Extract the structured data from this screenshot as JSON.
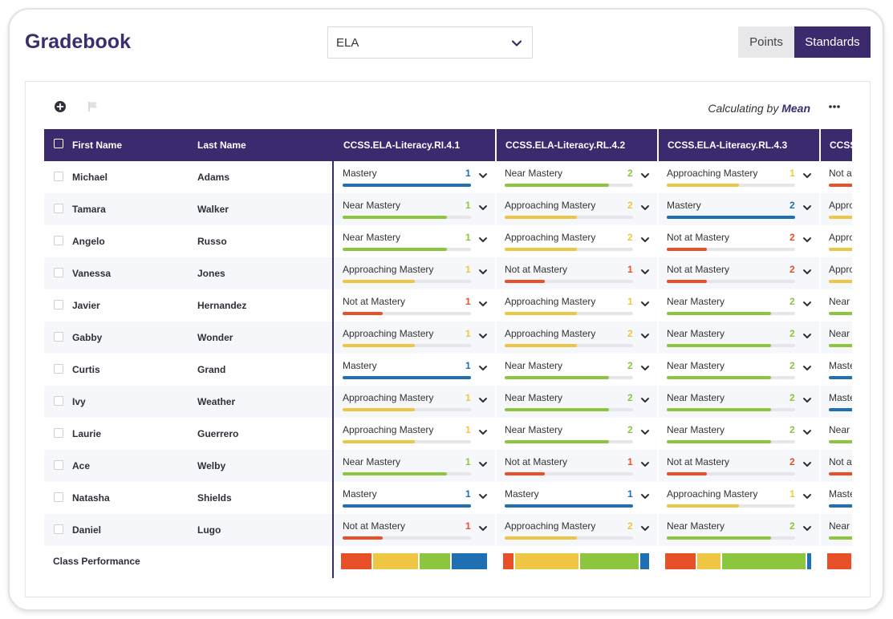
{
  "header": {
    "title": "Gradebook",
    "subject": "ELA",
    "toggle": {
      "points": "Points",
      "standards": "Standards",
      "active": "standards"
    }
  },
  "toolbar": {
    "calculating_prefix": "Calculating by",
    "calculating_method": "Mean"
  },
  "colors": {
    "brand": "#3c2a6e",
    "Mastery": "#1f6fb3",
    "Near Mastery": "#8cc63e",
    "Approaching Mastery": "#eec643",
    "Not at Mastery": "#e8502a"
  },
  "level_fill": {
    "Mastery": 1.0,
    "Near Mastery": 0.81,
    "Approaching Mastery": 0.56,
    "Not at Mastery": 0.31
  },
  "table": {
    "columns": {
      "first_name": "First Name",
      "last_name": "Last Name",
      "standards": [
        "CCSS.ELA-Literacy.RI.4.1",
        "CCSS.ELA-Literacy.RL.4.2",
        "CCSS.ELA-Literacy.RL.4.3",
        "CCSS"
      ]
    },
    "rows": [
      {
        "first": "Michael",
        "last": "Adams",
        "cells": [
          [
            "Mastery",
            "1"
          ],
          [
            "Near Mastery",
            "2"
          ],
          [
            "Approaching Mastery",
            "1"
          ],
          [
            "Not at Mastery",
            ""
          ]
        ]
      },
      {
        "first": "Tamara",
        "last": "Walker",
        "cells": [
          [
            "Near Mastery",
            "1"
          ],
          [
            "Approaching Mastery",
            "2"
          ],
          [
            "Mastery",
            "2"
          ],
          [
            "Approaching Mastery",
            ""
          ]
        ]
      },
      {
        "first": "Angelo",
        "last": "Russo",
        "cells": [
          [
            "Near Mastery",
            "1"
          ],
          [
            "Approaching Mastery",
            "2"
          ],
          [
            "Not at Mastery",
            "2"
          ],
          [
            "Approaching Mastery",
            ""
          ]
        ]
      },
      {
        "first": "Vanessa",
        "last": "Jones",
        "cells": [
          [
            "Approaching Mastery",
            "1"
          ],
          [
            "Not at Mastery",
            "1"
          ],
          [
            "Not at Mastery",
            "2"
          ],
          [
            "Approaching Mastery",
            ""
          ]
        ]
      },
      {
        "first": "Javier",
        "last": "Hernandez",
        "cells": [
          [
            "Not at Mastery",
            "1"
          ],
          [
            "Approaching Mastery",
            "1"
          ],
          [
            "Near Mastery",
            "2"
          ],
          [
            "Near Mastery",
            ""
          ]
        ]
      },
      {
        "first": "Gabby",
        "last": "Wonder",
        "cells": [
          [
            "Approaching Mastery",
            "1"
          ],
          [
            "Approaching Mastery",
            "2"
          ],
          [
            "Near Mastery",
            "2"
          ],
          [
            "Near Mastery",
            ""
          ]
        ]
      },
      {
        "first": "Curtis",
        "last": "Grand",
        "cells": [
          [
            "Mastery",
            "1"
          ],
          [
            "Near Mastery",
            "2"
          ],
          [
            "Near Mastery",
            "2"
          ],
          [
            "Mastery",
            ""
          ]
        ]
      },
      {
        "first": "Ivy",
        "last": "Weather",
        "cells": [
          [
            "Approaching Mastery",
            "1"
          ],
          [
            "Near Mastery",
            "2"
          ],
          [
            "Near Mastery",
            "2"
          ],
          [
            "Mastery",
            ""
          ]
        ]
      },
      {
        "first": "Laurie",
        "last": "Guerrero",
        "cells": [
          [
            "Approaching Mastery",
            "1"
          ],
          [
            "Near Mastery",
            "2"
          ],
          [
            "Near Mastery",
            "2"
          ],
          [
            "Near Mastery",
            ""
          ]
        ]
      },
      {
        "first": "Ace",
        "last": "Welby",
        "cells": [
          [
            "Near Mastery",
            "1"
          ],
          [
            "Not at Mastery",
            "1"
          ],
          [
            "Not at Mastery",
            "2"
          ],
          [
            "Not at Mastery",
            ""
          ]
        ]
      },
      {
        "first": "Natasha",
        "last": "Shields",
        "cells": [
          [
            "Mastery",
            "1"
          ],
          [
            "Mastery",
            "1"
          ],
          [
            "Approaching Mastery",
            "1"
          ],
          [
            "Mastery",
            ""
          ]
        ]
      },
      {
        "first": "Daniel",
        "last": "Lugo",
        "cells": [
          [
            "Not at Mastery",
            "1"
          ],
          [
            "Approaching Mastery",
            "2"
          ],
          [
            "Near Mastery",
            "2"
          ],
          [
            "Near Mastery",
            ""
          ]
        ]
      }
    ],
    "class_performance_label": "Class Performance",
    "class_performance": [
      [
        {
          "level": "Not at Mastery",
          "share": 0.22
        },
        {
          "level": "Approaching Mastery",
          "share": 0.32
        },
        {
          "level": "Near Mastery",
          "share": 0.22
        },
        {
          "level": "Mastery",
          "share": 0.24
        }
      ],
      [
        {
          "level": "Not at Mastery",
          "share": 0.08
        },
        {
          "level": "Approaching Mastery",
          "share": 0.45
        },
        {
          "level": "Near Mastery",
          "share": 0.41
        },
        {
          "level": "Mastery",
          "share": 0.06
        }
      ],
      [
        {
          "level": "Not at Mastery",
          "share": 0.22
        },
        {
          "level": "Approaching Mastery",
          "share": 0.17
        },
        {
          "level": "Near Mastery",
          "share": 0.58
        },
        {
          "level": "Mastery",
          "share": 0.03
        }
      ],
      [
        {
          "level": "Not at Mastery",
          "share": 1.0
        }
      ]
    ]
  }
}
